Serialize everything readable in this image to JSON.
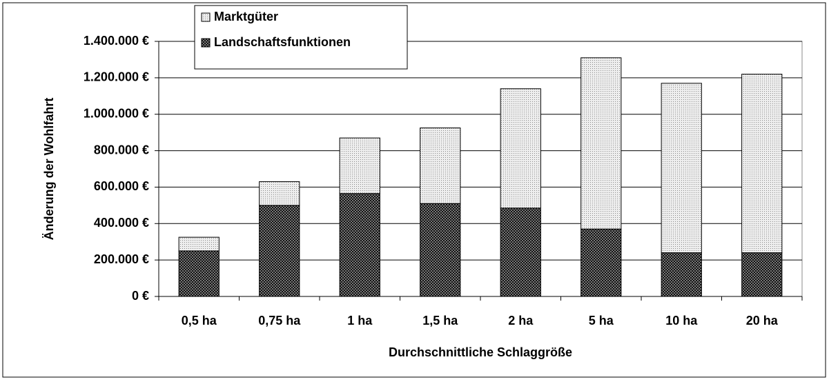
{
  "chart_data": {
    "type": "stacked_bar",
    "categories": [
      "0,5 ha",
      "0,75 ha",
      "1 ha",
      "1,5 ha",
      "2 ha",
      "5 ha",
      "10 ha",
      "20 ha"
    ],
    "series": [
      {
        "name": "Landschaftsfunktionen",
        "color": "#3a3a3a",
        "values": [
          250000,
          500000,
          565000,
          510000,
          485000,
          370000,
          240000,
          240000
        ]
      },
      {
        "name": "Marktgüter",
        "color": "#d9d9d9",
        "values": [
          75000,
          130000,
          305000,
          415000,
          655000,
          940000,
          930000,
          980000
        ]
      }
    ],
    "ylim": [
      0,
      1400000
    ],
    "yticks": [
      {
        "value": 0,
        "label": "0 €"
      },
      {
        "value": 200000,
        "label": "200.000 €"
      },
      {
        "value": 400000,
        "label": "400.000 €"
      },
      {
        "value": 600000,
        "label": "600.000 €"
      },
      {
        "value": 800000,
        "label": "800.000 €"
      },
      {
        "value": 1000000,
        "label": "1.000.000 €"
      },
      {
        "value": 1200000,
        "label": "1.200.000 €"
      },
      {
        "value": 1400000,
        "label": "1.400.000 €"
      }
    ],
    "y_label": "Änderung der Wohlfahrt",
    "x_label": "Durchschnittliche Schlaggröße",
    "grid": true,
    "legend": "top-left"
  }
}
